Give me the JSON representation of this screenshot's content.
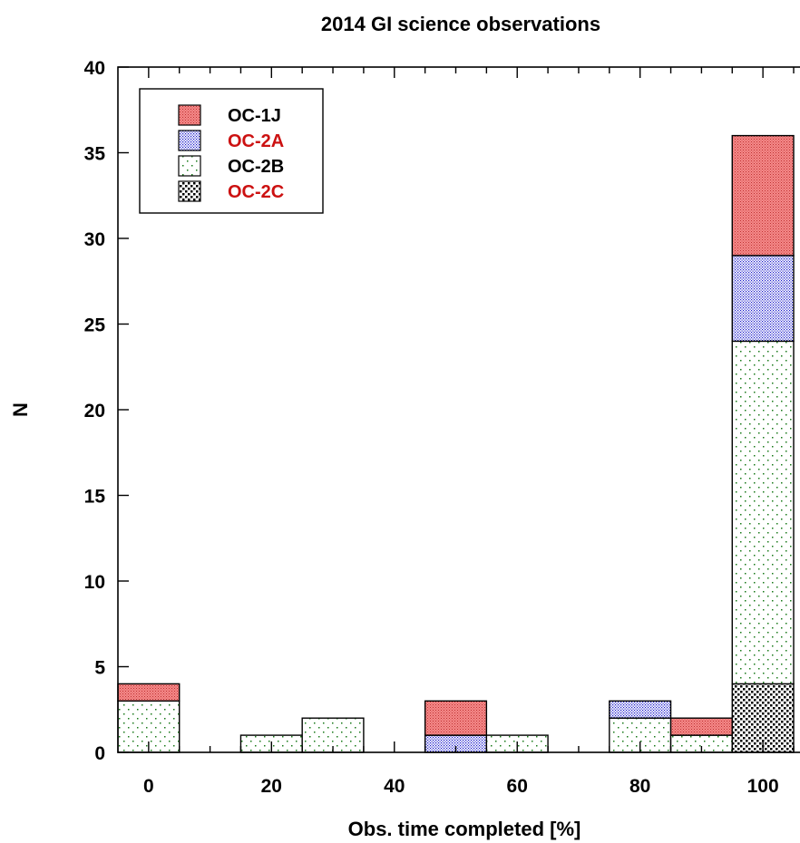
{
  "chart_data": {
    "type": "bar",
    "stacked": true,
    "title": "2014 GI science observations",
    "xlabel": "Obs. time completed [%]",
    "ylabel": "N",
    "xlim": [
      -5,
      105
    ],
    "ylim": [
      0,
      40
    ],
    "x_ticks": [
      0,
      20,
      40,
      60,
      80,
      100
    ],
    "y_ticks": [
      0,
      5,
      10,
      15,
      20,
      25,
      30,
      35,
      40
    ],
    "bin_width": 10,
    "categories": [
      0,
      20,
      30,
      50,
      60,
      80,
      90,
      100
    ],
    "series": [
      {
        "name": "OC-2C",
        "color": "#000000",
        "pattern": "dense-dots",
        "values": [
          0,
          0,
          0,
          0,
          0,
          0,
          0,
          4
        ]
      },
      {
        "name": "OC-2B",
        "color": "#1a7a1a",
        "pattern": "sparse-dots",
        "values": [
          3,
          1,
          2,
          0,
          1,
          2,
          1,
          20
        ]
      },
      {
        "name": "OC-2A",
        "color": "#1a1acc",
        "pattern": "blue-dots",
        "values": [
          0,
          0,
          0,
          1,
          0,
          1,
          0,
          5
        ]
      },
      {
        "name": "OC-1J",
        "color": "#f07070",
        "pattern": "red-fill",
        "values": [
          1,
          0,
          0,
          2,
          0,
          0,
          1,
          7
        ]
      }
    ],
    "legend": {
      "position": "top-left",
      "entries": [
        {
          "name": "OC-1J",
          "label_color": "#000000"
        },
        {
          "name": "OC-2A",
          "label_color": "#cc1111"
        },
        {
          "name": "OC-2B",
          "label_color": "#000000"
        },
        {
          "name": "OC-2C",
          "label_color": "#cc1111"
        }
      ]
    },
    "grid": false
  }
}
